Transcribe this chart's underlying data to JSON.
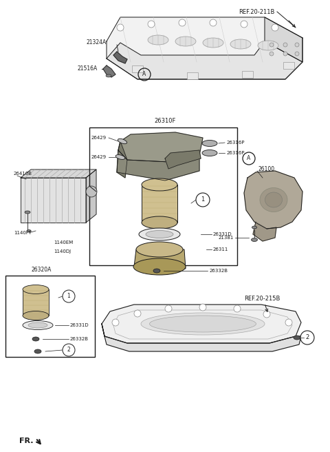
{
  "bg_color": "#ffffff",
  "fig_width": 4.8,
  "fig_height": 6.56,
  "dpi": 100,
  "ref_20_211B": "REF.20-211B",
  "ref_20_215B": "REF.20-215B",
  "fr_label": "FR.",
  "line_color": "#1a1a1a",
  "gray_fill": "#d8d8d8",
  "dark_gray": "#888888",
  "light_gray": "#eeeeee",
  "tan": "#c8b888",
  "dark_tan": "#a89868"
}
